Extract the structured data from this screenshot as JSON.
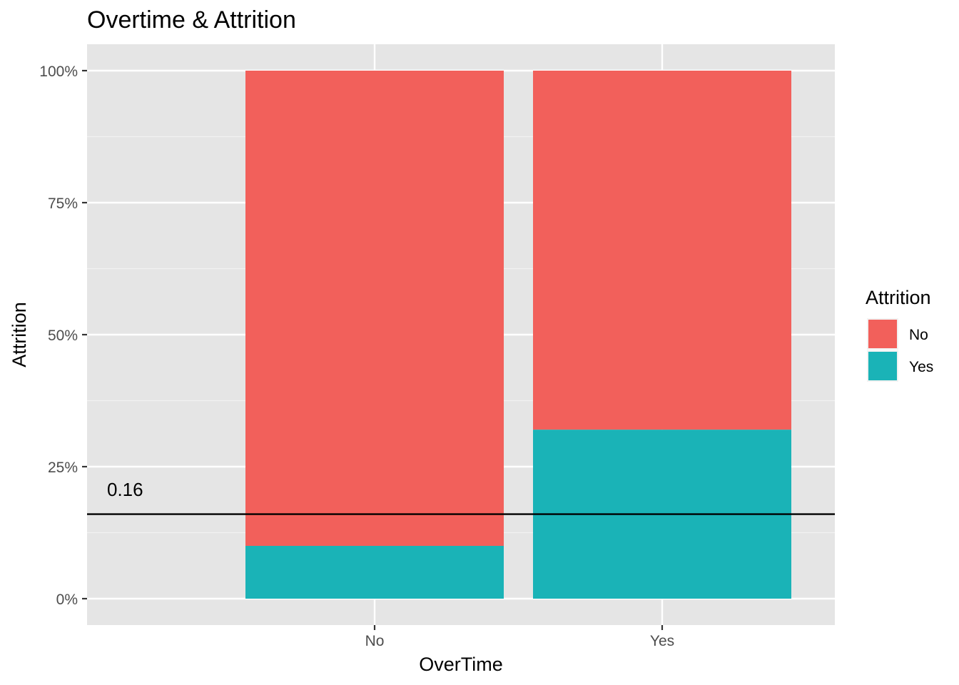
{
  "chart_data": {
    "type": "bar",
    "stacked": "percent",
    "title": "Overtime & Attrition",
    "xlabel": "OverTime",
    "ylabel": "Attrition",
    "categories": [
      "No",
      "Yes"
    ],
    "series": [
      {
        "name": "No",
        "values": [
          0.9,
          0.68
        ],
        "color": "#F2605B"
      },
      {
        "name": "Yes",
        "values": [
          0.1,
          0.32
        ],
        "color": "#1AB3B7"
      }
    ],
    "y_ticks": [
      {
        "value": 0,
        "label": "0%"
      },
      {
        "value": 0.25,
        "label": "25%"
      },
      {
        "value": 0.5,
        "label": "50%"
      },
      {
        "value": 0.75,
        "label": "75%"
      },
      {
        "value": 1,
        "label": "100%"
      }
    ],
    "ylim": [
      -0.05,
      1.05
    ],
    "grid": true,
    "legend": {
      "title": "Attrition",
      "position": "right"
    },
    "reference_line": {
      "value": 0.16,
      "label": "0.16",
      "color": "#000000"
    }
  }
}
